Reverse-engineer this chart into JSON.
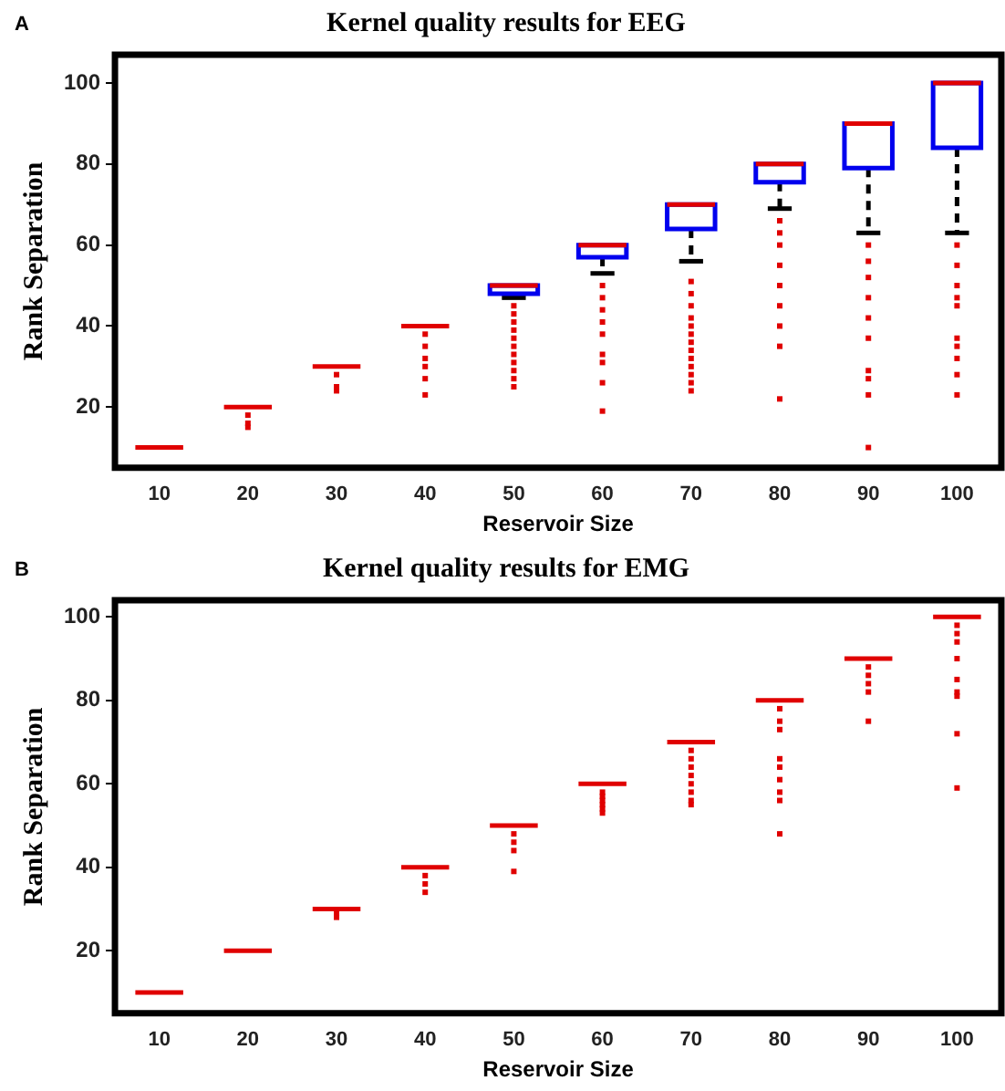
{
  "chart_data": [
    {
      "type": "box",
      "title": "Kernel quality results for EEG",
      "xlabel": "Reservoir Size",
      "ylabel": "Rank Separation",
      "annotations": [
        "A"
      ],
      "categories": [
        "10",
        "20",
        "30",
        "40",
        "50",
        "60",
        "70",
        "80",
        "90",
        "100"
      ],
      "ylim": [
        5,
        107
      ],
      "yticks": [
        20,
        40,
        60,
        80,
        100
      ],
      "grid": false,
      "boxes": [
        {
          "low": 10,
          "q1": 10,
          "median": 10,
          "q3": 10,
          "high": 10
        },
        {
          "low": 20,
          "q1": 20,
          "median": 20,
          "q3": 20,
          "high": 20,
          "outliers": [
            18,
            16,
            15
          ]
        },
        {
          "low": 30,
          "q1": 30,
          "median": 30,
          "q3": 30,
          "high": 30,
          "outliers": [
            28,
            25,
            24
          ]
        },
        {
          "low": 40,
          "q1": 40,
          "median": 40,
          "q3": 40,
          "high": 40,
          "outliers": [
            38,
            35,
            32,
            30,
            27,
            23
          ]
        },
        {
          "low": 47,
          "q1": 48,
          "median": 50,
          "q3": 50,
          "high": 50,
          "outliers": [
            45,
            43,
            41,
            39,
            37,
            35,
            33,
            31,
            29,
            27,
            25
          ]
        },
        {
          "low": 53,
          "q1": 57,
          "median": 60,
          "q3": 60,
          "high": 60,
          "outliers": [
            50,
            47,
            44,
            41,
            38,
            33,
            31,
            26,
            19
          ]
        },
        {
          "low": 56,
          "q1": 64,
          "median": 70,
          "q3": 70,
          "high": 70,
          "outliers": [
            51,
            48,
            45,
            42,
            40,
            38,
            36,
            34,
            32,
            30,
            28,
            26,
            24
          ]
        },
        {
          "low": 69,
          "q1": 75.5,
          "median": 80,
          "q3": 80,
          "high": 80,
          "outliers": [
            66,
            63,
            60,
            55,
            50,
            45,
            40,
            35,
            22
          ]
        },
        {
          "low": 63,
          "q1": 79,
          "median": 90,
          "q3": 90,
          "high": 90,
          "outliers": [
            60,
            56,
            52,
            47,
            42,
            37,
            29,
            27,
            23,
            10
          ]
        },
        {
          "low": 63,
          "q1": 84,
          "median": 100,
          "q3": 100,
          "high": 100,
          "outliers": [
            60,
            55,
            50,
            47,
            45,
            37,
            35,
            32,
            28,
            23
          ]
        }
      ]
    },
    {
      "type": "box",
      "title": "Kernel quality results for EMG",
      "xlabel": "Reservoir Size",
      "ylabel": "Rank Separation",
      "annotations": [
        "B"
      ],
      "categories": [
        "10",
        "20",
        "30",
        "40",
        "50",
        "60",
        "70",
        "80",
        "90",
        "100"
      ],
      "ylim": [
        5,
        104
      ],
      "yticks": [
        20,
        40,
        60,
        80,
        100
      ],
      "grid": false,
      "boxes": [
        {
          "low": 10,
          "q1": 10,
          "median": 10,
          "q3": 10,
          "high": 10
        },
        {
          "low": 20,
          "q1": 20,
          "median": 20,
          "q3": 20,
          "high": 20
        },
        {
          "low": 30,
          "q1": 30,
          "median": 30,
          "q3": 30,
          "high": 30,
          "outliers": [
            29,
            28
          ]
        },
        {
          "low": 40,
          "q1": 40,
          "median": 40,
          "q3": 40,
          "high": 40,
          "outliers": [
            38,
            36,
            34
          ]
        },
        {
          "low": 50,
          "q1": 50,
          "median": 50,
          "q3": 50,
          "high": 50,
          "outliers": [
            48,
            46,
            44,
            39
          ]
        },
        {
          "low": 60,
          "q1": 60,
          "median": 60,
          "q3": 60,
          "high": 60,
          "outliers": [
            58,
            57,
            56,
            55,
            54,
            53
          ]
        },
        {
          "low": 70,
          "q1": 70,
          "median": 70,
          "q3": 70,
          "high": 70,
          "outliers": [
            68,
            66,
            64,
            62,
            60,
            58,
            56,
            55
          ]
        },
        {
          "low": 80,
          "q1": 80,
          "median": 80,
          "q3": 80,
          "high": 80,
          "outliers": [
            78,
            75,
            73,
            66,
            64,
            61,
            58,
            56,
            48
          ]
        },
        {
          "low": 90,
          "q1": 90,
          "median": 90,
          "q3": 90,
          "high": 90,
          "outliers": [
            88,
            86,
            84,
            82,
            75
          ]
        },
        {
          "low": 100,
          "q1": 100,
          "median": 100,
          "q3": 100,
          "high": 100,
          "outliers": [
            98,
            96,
            94,
            90,
            85,
            82,
            81,
            72,
            59
          ]
        }
      ]
    }
  ]
}
